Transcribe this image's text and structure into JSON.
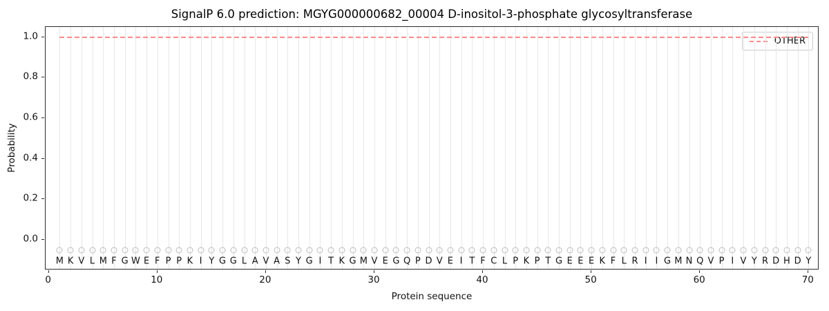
{
  "chart_data": {
    "type": "line",
    "title": "SignalP 6.0 prediction: MGYG000000682_00004 D-inositol-3-phosphate glycosyltransferase",
    "xlabel": "Protein sequence",
    "ylabel": "Probability",
    "xlim": [
      -0.3,
      71
    ],
    "ylim": [
      -0.15,
      1.05
    ],
    "xticks": [
      0,
      10,
      20,
      30,
      40,
      50,
      60,
      70
    ],
    "yticks": [
      {
        "value": 0.0,
        "label": "0.0"
      },
      {
        "value": 0.2,
        "label": "0.2"
      },
      {
        "value": 0.4,
        "label": "0.4"
      },
      {
        "value": 0.6,
        "label": "0.6"
      },
      {
        "value": 0.8,
        "label": "0.8"
      },
      {
        "value": 1.0,
        "label": "1.0"
      }
    ],
    "grid": "vertical line at every residue position",
    "legend_position": "upper right",
    "series": [
      {
        "name": "OTHER",
        "line_style": "dashed",
        "color": "#f98a8a",
        "x_start": 1,
        "x_end": 70,
        "constant_y": 1.0
      }
    ],
    "sequence": "MKVLMFGWEFPPKIYGGLAVASYGITKGMVEGQPDVEITFCLPKPTGEEEKFLRIIGMNQVPIVYRDHDY",
    "residue_markers": {
      "shape": "open-circle",
      "y": -0.05,
      "color": "#bcbcbc",
      "letter_y": -0.107
    }
  }
}
